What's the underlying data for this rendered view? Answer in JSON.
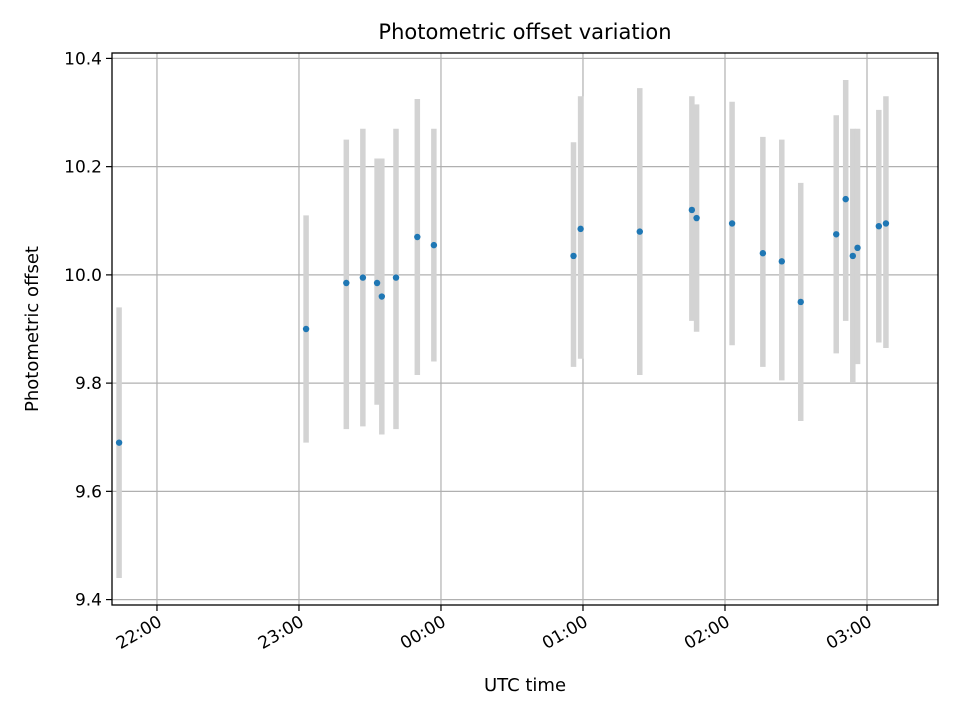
{
  "chart_data": {
    "type": "scatter",
    "title": "Photometric offset variation",
    "xlabel": "UTC time",
    "ylabel": "Photometric offset",
    "x_ticks": [
      "22:00",
      "23:00",
      "00:00",
      "01:00",
      "02:00",
      "03:00"
    ],
    "y_ticks": [
      "9.4",
      "9.6",
      "9.8",
      "10.0",
      "10.2",
      "10.4"
    ],
    "xlim": [
      "21:41",
      "03:30"
    ],
    "ylim": [
      9.39,
      10.41
    ],
    "grid": true,
    "colors": {
      "point": "#1f77b4",
      "errorbar": "#d3d3d3"
    },
    "series": [
      {
        "points": [
          {
            "x": "21:44",
            "y": 9.69,
            "yerr_low": 9.44,
            "yerr_high": 9.94
          },
          {
            "x": "23:03",
            "y": 9.9,
            "yerr_low": 9.69,
            "yerr_high": 10.11
          },
          {
            "x": "23:20",
            "y": 9.985,
            "yerr_low": 9.715,
            "yerr_high": 10.25
          },
          {
            "x": "23:27",
            "y": 9.995,
            "yerr_low": 9.72,
            "yerr_high": 10.27
          },
          {
            "x": "23:33",
            "y": 9.985,
            "yerr_low": 9.76,
            "yerr_high": 10.215
          },
          {
            "x": "23:35",
            "y": 9.96,
            "yerr_low": 9.705,
            "yerr_high": 10.215
          },
          {
            "x": "23:41",
            "y": 9.995,
            "yerr_low": 9.715,
            "yerr_high": 10.27
          },
          {
            "x": "23:50",
            "y": 10.07,
            "yerr_low": 9.815,
            "yerr_high": 10.325
          },
          {
            "x": "23:57",
            "y": 10.055,
            "yerr_low": 9.84,
            "yerr_high": 10.27
          },
          {
            "x": "00:56",
            "y": 10.035,
            "yerr_low": 9.83,
            "yerr_high": 10.245
          },
          {
            "x": "00:59",
            "y": 10.085,
            "yerr_low": 9.845,
            "yerr_high": 10.33
          },
          {
            "x": "01:24",
            "y": 10.08,
            "yerr_low": 9.815,
            "yerr_high": 10.345
          },
          {
            "x": "01:46",
            "y": 10.12,
            "yerr_low": 9.915,
            "yerr_high": 10.33
          },
          {
            "x": "01:48",
            "y": 10.105,
            "yerr_low": 9.895,
            "yerr_high": 10.315
          },
          {
            "x": "02:03",
            "y": 10.095,
            "yerr_low": 9.87,
            "yerr_high": 10.32
          },
          {
            "x": "02:16",
            "y": 10.04,
            "yerr_low": 9.83,
            "yerr_high": 10.255
          },
          {
            "x": "02:24",
            "y": 10.025,
            "yerr_low": 9.805,
            "yerr_high": 10.25
          },
          {
            "x": "02:32",
            "y": 9.95,
            "yerr_low": 9.73,
            "yerr_high": 10.17
          },
          {
            "x": "02:47",
            "y": 10.075,
            "yerr_low": 9.855,
            "yerr_high": 10.295
          },
          {
            "x": "02:51",
            "y": 10.14,
            "yerr_low": 9.915,
            "yerr_high": 10.36
          },
          {
            "x": "02:54",
            "y": 10.035,
            "yerr_low": 9.8,
            "yerr_high": 10.27
          },
          {
            "x": "02:56",
            "y": 10.05,
            "yerr_low": 9.835,
            "yerr_high": 10.27
          },
          {
            "x": "03:05",
            "y": 10.09,
            "yerr_low": 9.875,
            "yerr_high": 10.305
          },
          {
            "x": "03:08",
            "y": 10.095,
            "yerr_low": 9.865,
            "yerr_high": 10.33
          }
        ]
      }
    ]
  }
}
